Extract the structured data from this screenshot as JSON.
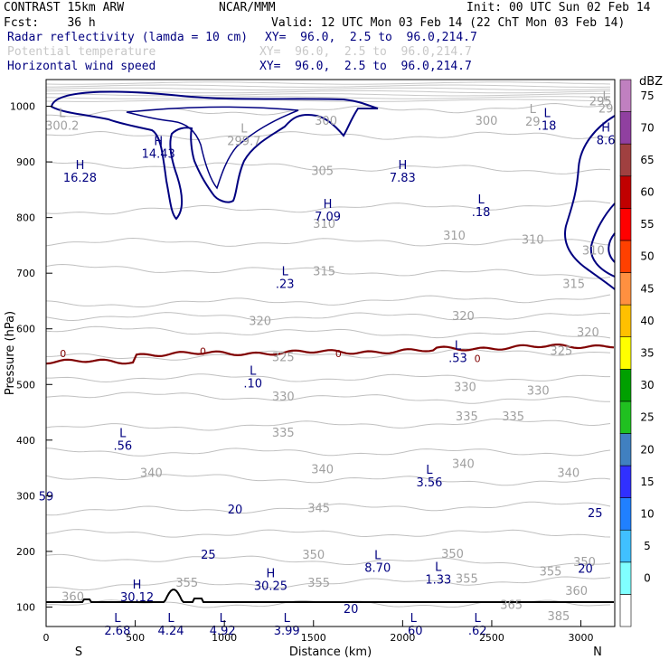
{
  "header": {
    "model": "CONTRAST 15km ARW",
    "center": "NCAR/MMM",
    "init": "Init: 00 UTC Sun 02 Feb 14",
    "fcst": "Fcst:    36 h",
    "valid": "Valid: 12 UTC Mon 03 Feb 14 (22 ChT Mon 03 Feb 14)",
    "field1_name": "Radar reflectivity (lamda = 10 cm)",
    "field1_xy": "XY=  96.0,  2.5 to  96.0,214.7",
    "field2_name": "Potential temperature",
    "field2_xy": "XY=  96.0,  2.5 to  96.0,214.7",
    "field3_name": "Horizontal wind speed",
    "field3_xy": "XY=  96.0,  2.5 to  96.0,214.7"
  },
  "colors": {
    "navy": "#000080",
    "theta_gray": "#b4b4b4",
    "label_gray": "#a0a0a0",
    "freezing": "#800000",
    "terrain": "#000000"
  },
  "chart_data": {
    "type": "cross-section",
    "xlabel": "Distance (km)",
    "ylabel": "Pressure (hPa)",
    "xlim": [
      0,
      3190
    ],
    "ylim": [
      1048,
      65
    ],
    "x_ticks": [
      0,
      500,
      1000,
      1500,
      2000,
      2500,
      3000
    ],
    "y_ticks": [
      100,
      200,
      300,
      400,
      500,
      600,
      700,
      800,
      900,
      1000
    ],
    "x_end_labels": {
      "left": "S",
      "right": "N"
    },
    "colorbar": {
      "unit": "dBZ",
      "levels": [
        0,
        5,
        10,
        15,
        20,
        25,
        30,
        35,
        40,
        45,
        50,
        55,
        60,
        65,
        70,
        75
      ],
      "colors": [
        "#ffffff",
        "#80ffff",
        "#40c0ff",
        "#2080ff",
        "#3030ff",
        "#4080c0",
        "#20c020",
        "#00a000",
        "#ffff00",
        "#ffc000",
        "#ff9040",
        "#ff4000",
        "#ff0000",
        "#c00000",
        "#a04040",
        "#9040a0",
        "#c080c0"
      ]
    },
    "theta_labels": [
      {
        "v": "385",
        "x": 2875,
        "p": 83
      },
      {
        "v": "365",
        "x": 2610,
        "p": 103
      },
      {
        "v": "360",
        "x": 150,
        "p": 118
      },
      {
        "v": "360",
        "x": 2975,
        "p": 128
      },
      {
        "v": "355",
        "x": 790,
        "p": 143
      },
      {
        "v": "355",
        "x": 1530,
        "p": 143
      },
      {
        "v": "355",
        "x": 2360,
        "p": 150
      },
      {
        "v": "355",
        "x": 2830,
        "p": 163
      },
      {
        "v": "350",
        "x": 3020,
        "p": 180
      },
      {
        "v": "350",
        "x": 1500,
        "p": 193
      },
      {
        "v": "350",
        "x": 2280,
        "p": 195
      },
      {
        "v": "345",
        "x": 1530,
        "p": 277
      },
      {
        "v": "340",
        "x": 590,
        "p": 340
      },
      {
        "v": "340",
        "x": 1550,
        "p": 347
      },
      {
        "v": "340",
        "x": 2340,
        "p": 357
      },
      {
        "v": "340",
        "x": 2930,
        "p": 340
      },
      {
        "v": "335",
        "x": 1330,
        "p": 413
      },
      {
        "v": "335",
        "x": 2360,
        "p": 442
      },
      {
        "v": "335",
        "x": 2620,
        "p": 442
      },
      {
        "v": "330",
        "x": 1330,
        "p": 478
      },
      {
        "v": "330",
        "x": 2350,
        "p": 495
      },
      {
        "v": "330",
        "x": 2760,
        "p": 488
      },
      {
        "v": "325",
        "x": 1330,
        "p": 548
      },
      {
        "v": "325",
        "x": 2890,
        "p": 560
      },
      {
        "v": "320",
        "x": 3040,
        "p": 593
      },
      {
        "v": "320",
        "x": 1200,
        "p": 613
      },
      {
        "v": "320",
        "x": 2340,
        "p": 622
      },
      {
        "v": "315",
        "x": 1560,
        "p": 703
      },
      {
        "v": "315",
        "x": 2960,
        "p": 680
      },
      {
        "v": "310",
        "x": 3070,
        "p": 740
      },
      {
        "v": "310",
        "x": 1560,
        "p": 788
      },
      {
        "v": "310",
        "x": 2290,
        "p": 767
      },
      {
        "v": "310",
        "x": 2730,
        "p": 760
      },
      {
        "v": "305",
        "x": 1550,
        "p": 883
      },
      {
        "v": "300",
        "x": 1570,
        "p": 973
      },
      {
        "v": "300",
        "x": 2470,
        "p": 973
      },
      {
        "v": "295",
        "x": 3110,
        "p": 1008
      }
    ],
    "wind_labels": [
      {
        "v": "20",
        "x": 1710,
        "p": 96
      },
      {
        "v": "20",
        "x": 3025,
        "p": 168
      },
      {
        "v": "25",
        "x": 910,
        "p": 193
      },
      {
        "v": "25",
        "x": 3080,
        "p": 268
      },
      {
        "v": "20",
        "x": 1060,
        "p": 275
      },
      {
        "v": "59",
        "x": 0,
        "p": 298
      }
    ],
    "freezing_labels": [
      {
        "v": "0",
        "x": 95,
        "p": 556
      },
      {
        "v": "0",
        "x": 880,
        "p": 560
      },
      {
        "v": "0",
        "x": 1640,
        "p": 556
      },
      {
        "v": "0",
        "x": 2420,
        "p": 547
      }
    ],
    "extrema_navy": [
      {
        "t": "L",
        "v": "2.68",
        "x": 400,
        "p": 70
      },
      {
        "t": "L",
        "v": "4.24",
        "x": 700,
        "p": 70
      },
      {
        "t": "L",
        "v": "4.92",
        "x": 990,
        "p": 70
      },
      {
        "t": "L",
        "v": "3.99",
        "x": 1350,
        "p": 70
      },
      {
        "t": "L",
        "v": ".60",
        "x": 2060,
        "p": 70
      },
      {
        "t": "L",
        "v": ".62",
        "x": 2420,
        "p": 70
      },
      {
        "t": "H",
        "v": "30.12",
        "x": 510,
        "p": 130
      },
      {
        "t": "H",
        "v": "30.25",
        "x": 1260,
        "p": 150
      },
      {
        "t": "L",
        "v": "1.33",
        "x": 2200,
        "p": 162
      },
      {
        "t": "L",
        "v": "8.70",
        "x": 1860,
        "p": 183
      },
      {
        "t": "L",
        "v": "3.56",
        "x": 2150,
        "p": 336
      },
      {
        "t": "L",
        "v": ".56",
        "x": 430,
        "p": 402
      },
      {
        "t": "L",
        "v": ".10",
        "x": 1160,
        "p": 514
      },
      {
        "t": "L",
        "v": ".53",
        "x": 2310,
        "p": 560
      },
      {
        "t": "L",
        "v": ".23",
        "x": 1340,
        "p": 693
      },
      {
        "t": "H",
        "v": "7.09",
        "x": 1580,
        "p": 814
      },
      {
        "t": "L",
        "v": ".18",
        "x": 2440,
        "p": 822
      },
      {
        "t": "H",
        "v": "16.28",
        "x": 190,
        "p": 884
      },
      {
        "t": "H",
        "v": "7.83",
        "x": 2000,
        "p": 884
      },
      {
        "t": "H",
        "v": "14.43",
        "x": 630,
        "p": 927
      },
      {
        "t": "H",
        "v": "8.6",
        "x": 3140,
        "p": 951
      },
      {
        "t": "L",
        "v": ".18",
        "x": 2810,
        "p": 977
      }
    ],
    "extrema_gray": [
      {
        "t": "L",
        "v": "300.2",
        "x": 90,
        "p": 977
      },
      {
        "t": "L",
        "v": "299.7",
        "x": 1110,
        "p": 950
      },
      {
        "t": "L",
        "v": "29",
        "x": 2730,
        "p": 985
      },
      {
        "t": "L",
        "v": "29",
        "x": 3140,
        "p": 1008
      }
    ]
  }
}
